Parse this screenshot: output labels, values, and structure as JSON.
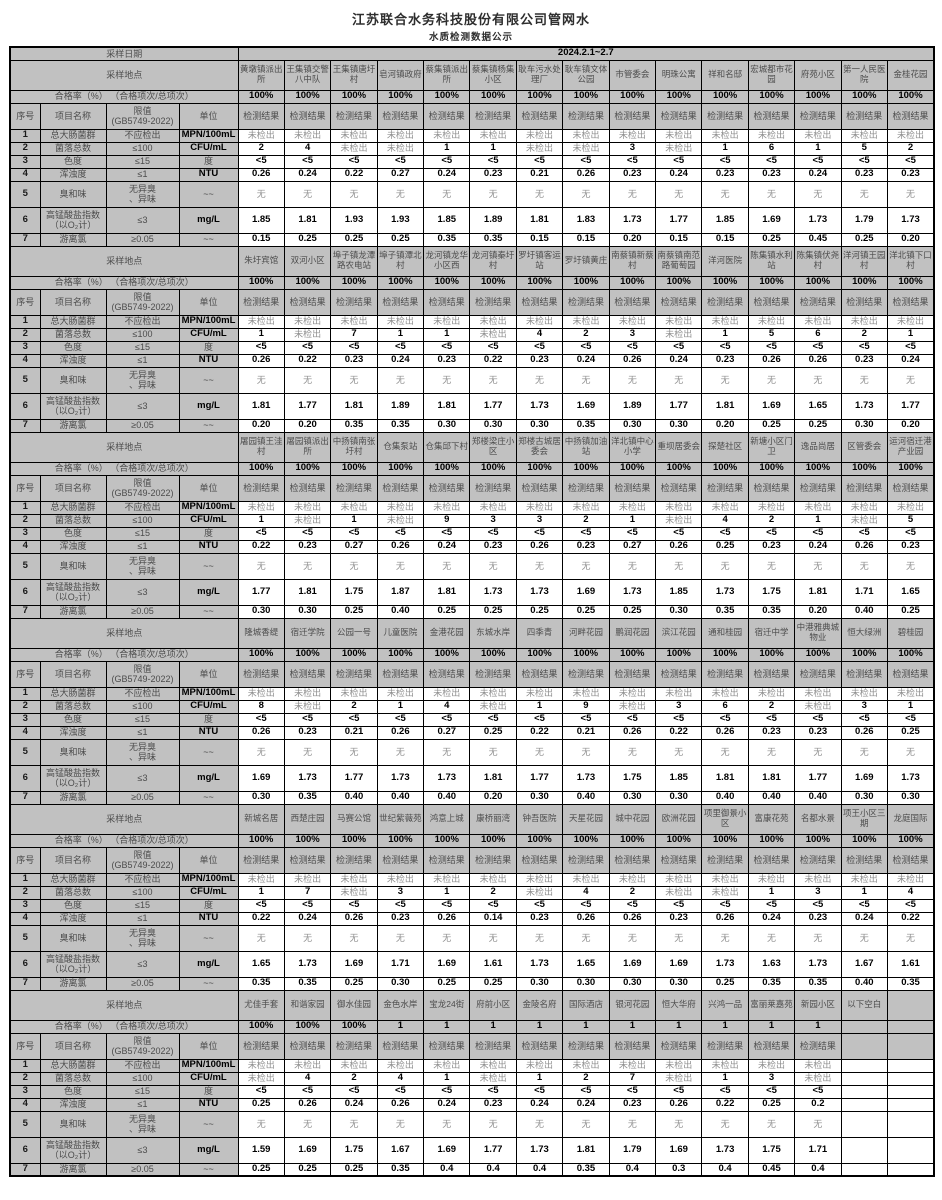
{
  "title": "江苏联合水务科技股份有限公司管网水",
  "subtitle": "水质检测数据公示",
  "header": {
    "sampling_date_label": "采样日期",
    "sampling_date_value": "2024.2.1~2.7",
    "sampling_location_label": "采样地点",
    "pass_rate_label": "合格率（%） （合格项次/总项次）",
    "col_seq": "序号",
    "col_item": "项目名称",
    "col_limit": "限值\n(GB5749-2022)",
    "col_unit": "单位",
    "result_label": "检测结果"
  },
  "items": [
    {
      "seq": "1",
      "name": "总大肠菌群",
      "limit": "不应检出",
      "unit": "MPN/100mL"
    },
    {
      "seq": "2",
      "name": "菌落总数",
      "limit": "≤100",
      "unit": "CFU/mL"
    },
    {
      "seq": "3",
      "name": "色度",
      "limit": "≤15",
      "unit": "度"
    },
    {
      "seq": "4",
      "name": "浑浊度",
      "limit": "≤1",
      "unit": "NTU"
    },
    {
      "seq": "5",
      "name": "臭和味",
      "limit": "无异臭\n、异味",
      "unit": "~~"
    },
    {
      "seq": "6",
      "name": "高锰酸盐指数\n（以O₂计）",
      "limit": "≤3",
      "unit": "mg/L"
    },
    {
      "seq": "7",
      "name": "游离氯",
      "limit": "≥0.05",
      "unit": "~~"
    }
  ],
  "sections": [
    {
      "locations": [
        "黄墩镇派出所",
        "王集镇交警八中队",
        "王集镇唐圩村",
        "皂河镇政府",
        "蔡集镇派出所",
        "蔡集镇杨集小区",
        "耿车污水处理厂",
        "耿车镇文体公园",
        "市管委会",
        "明珠公寓",
        "祥和名邸",
        "宏城都市花园",
        "府苑小区",
        "第一人民医院",
        "金桂花园"
      ],
      "pass_rates": [
        "100%",
        "100%",
        "100%",
        "100%",
        "100%",
        "100%",
        "100%",
        "100%",
        "100%",
        "100%",
        "100%",
        "100%",
        "100%",
        "100%",
        "100%"
      ],
      "results": [
        [
          "未检出",
          "未检出",
          "未检出",
          "未检出",
          "未检出",
          "未检出",
          "未检出",
          "未检出",
          "未检出",
          "未检出",
          "未检出",
          "未检出",
          "未检出",
          "未检出",
          "未检出"
        ],
        [
          "2",
          "4",
          "未检出",
          "未检出",
          "1",
          "1",
          "未检出",
          "未检出",
          "3",
          "未检出",
          "1",
          "6",
          "1",
          "5",
          "2"
        ],
        [
          "<5",
          "<5",
          "<5",
          "<5",
          "<5",
          "<5",
          "<5",
          "<5",
          "<5",
          "<5",
          "<5",
          "<5",
          "<5",
          "<5",
          "<5"
        ],
        [
          "0.26",
          "0.24",
          "0.22",
          "0.27",
          "0.24",
          "0.23",
          "0.21",
          "0.26",
          "0.23",
          "0.24",
          "0.23",
          "0.23",
          "0.24",
          "0.23",
          "0.23"
        ],
        [
          "无",
          "无",
          "无",
          "无",
          "无",
          "无",
          "无",
          "无",
          "无",
          "无",
          "无",
          "无",
          "无",
          "无",
          "无"
        ],
        [
          "1.85",
          "1.81",
          "1.93",
          "1.93",
          "1.85",
          "1.89",
          "1.81",
          "1.83",
          "1.73",
          "1.77",
          "1.85",
          "1.69",
          "1.73",
          "1.79",
          "1.73"
        ],
        [
          "0.15",
          "0.25",
          "0.25",
          "0.25",
          "0.35",
          "0.35",
          "0.15",
          "0.15",
          "0.20",
          "0.15",
          "0.15",
          "0.25",
          "0.45",
          "0.25",
          "0.20"
        ]
      ]
    },
    {
      "locations": [
        "朱圩宾馆",
        "双河小区",
        "埠子镇龙潭路农电站",
        "埠子镇潭北村",
        "龙河镇龙华小区西",
        "龙河镇秦圩村",
        "罗圩镇客运站",
        "罗圩镇黄庄",
        "南蔡镇新蔡村",
        "南蔡镇南范路葡萄园",
        "洋河医院",
        "陈集镇水利站",
        "陈集镇伏尧村",
        "洋河镇王园村",
        "洋北镇下口村"
      ],
      "pass_rates": [
        "100%",
        "100%",
        "100%",
        "100%",
        "100%",
        "100%",
        "100%",
        "100%",
        "100%",
        "100%",
        "100%",
        "100%",
        "100%",
        "100%",
        "100%"
      ],
      "results": [
        [
          "未检出",
          "未检出",
          "未检出",
          "未检出",
          "未检出",
          "未检出",
          "未检出",
          "未检出",
          "未检出",
          "未检出",
          "未检出",
          "未检出",
          "未检出",
          "未检出",
          "未检出"
        ],
        [
          "1",
          "未检出",
          "7",
          "1",
          "1",
          "未检出",
          "4",
          "2",
          "3",
          "未检出",
          "1",
          "5",
          "6",
          "2",
          "1"
        ],
        [
          "<5",
          "<5",
          "<5",
          "<5",
          "<5",
          "<5",
          "<5",
          "<5",
          "<5",
          "<5",
          "<5",
          "<5",
          "<5",
          "<5",
          "<5"
        ],
        [
          "0.26",
          "0.22",
          "0.23",
          "0.24",
          "0.23",
          "0.22",
          "0.23",
          "0.24",
          "0.26",
          "0.24",
          "0.23",
          "0.26",
          "0.26",
          "0.23",
          "0.24"
        ],
        [
          "无",
          "无",
          "无",
          "无",
          "无",
          "无",
          "无",
          "无",
          "无",
          "无",
          "无",
          "无",
          "无",
          "无",
          "无"
        ],
        [
          "1.81",
          "1.77",
          "1.81",
          "1.89",
          "1.81",
          "1.77",
          "1.73",
          "1.69",
          "1.89",
          "1.77",
          "1.81",
          "1.69",
          "1.65",
          "1.73",
          "1.77"
        ],
        [
          "0.20",
          "0.20",
          "0.35",
          "0.35",
          "0.30",
          "0.30",
          "0.30",
          "0.35",
          "0.30",
          "0.30",
          "0.20",
          "0.25",
          "0.25",
          "0.30",
          "0.20"
        ]
      ]
    },
    {
      "locations": [
        "屠园镇王洼村",
        "屠园镇派出所",
        "中扬镇南张圩村",
        "仓集泵站",
        "仓集邱下村",
        "郑楼梁庄小区",
        "郑楼古城居委会",
        "中扬镇加油站",
        "洋北镇中心小学",
        "重坝居委会",
        "探楚社区",
        "新塘小区门卫",
        "逸品尚居",
        "区管委会",
        "运河宿迁港产业园"
      ],
      "pass_rates": [
        "100%",
        "100%",
        "100%",
        "100%",
        "100%",
        "100%",
        "100%",
        "100%",
        "100%",
        "100%",
        "100%",
        "100%",
        "100%",
        "100%",
        "100%"
      ],
      "results": [
        [
          "未检出",
          "未检出",
          "未检出",
          "未检出",
          "未检出",
          "未检出",
          "未检出",
          "未检出",
          "未检出",
          "未检出",
          "未检出",
          "未检出",
          "未检出",
          "未检出",
          "未检出"
        ],
        [
          "1",
          "未检出",
          "1",
          "未检出",
          "9",
          "3",
          "3",
          "2",
          "1",
          "未检出",
          "4",
          "2",
          "1",
          "未检出",
          "5"
        ],
        [
          "<5",
          "<5",
          "<5",
          "<5",
          "<5",
          "<5",
          "<5",
          "<5",
          "<5",
          "<5",
          "<5",
          "<5",
          "<5",
          "<5",
          "<5"
        ],
        [
          "0.22",
          "0.23",
          "0.27",
          "0.26",
          "0.24",
          "0.23",
          "0.26",
          "0.23",
          "0.27",
          "0.26",
          "0.25",
          "0.23",
          "0.24",
          "0.26",
          "0.23"
        ],
        [
          "无",
          "无",
          "无",
          "无",
          "无",
          "无",
          "无",
          "无",
          "无",
          "无",
          "无",
          "无",
          "无",
          "无",
          "无"
        ],
        [
          "1.77",
          "1.81",
          "1.75",
          "1.87",
          "1.81",
          "1.73",
          "1.73",
          "1.69",
          "1.73",
          "1.85",
          "1.73",
          "1.75",
          "1.81",
          "1.71",
          "1.65"
        ],
        [
          "0.30",
          "0.30",
          "0.25",
          "0.40",
          "0.25",
          "0.25",
          "0.25",
          "0.25",
          "0.25",
          "0.30",
          "0.35",
          "0.35",
          "0.20",
          "0.40",
          "0.25"
        ]
      ]
    },
    {
      "locations": [
        "隆城香缇",
        "宿迁学院",
        "公园一号",
        "儿童医院",
        "金港花园",
        "东城水岸",
        "四季青",
        "河畔花园",
        "鹏润花园",
        "滨江花园",
        "通和桂园",
        "宿迁中学",
        "中港雅典城物业",
        "恒大绿洲",
        "碧桂园"
      ],
      "pass_rates": [
        "100%",
        "100%",
        "100%",
        "100%",
        "100%",
        "100%",
        "100%",
        "100%",
        "100%",
        "100%",
        "100%",
        "100%",
        "100%",
        "100%",
        "100%"
      ],
      "results": [
        [
          "未检出",
          "未检出",
          "未检出",
          "未检出",
          "未检出",
          "未检出",
          "未检出",
          "未检出",
          "未检出",
          "未检出",
          "未检出",
          "未检出",
          "未检出",
          "未检出",
          "未检出"
        ],
        [
          "8",
          "未检出",
          "2",
          "1",
          "4",
          "未检出",
          "1",
          "9",
          "未检出",
          "3",
          "6",
          "2",
          "未检出",
          "3",
          "1"
        ],
        [
          "<5",
          "<5",
          "<5",
          "<5",
          "<5",
          "<5",
          "<5",
          "<5",
          "<5",
          "<5",
          "<5",
          "<5",
          "<5",
          "<5",
          "<5"
        ],
        [
          "0.26",
          "0.23",
          "0.21",
          "0.26",
          "0.27",
          "0.25",
          "0.22",
          "0.21",
          "0.26",
          "0.22",
          "0.26",
          "0.23",
          "0.23",
          "0.26",
          "0.25"
        ],
        [
          "无",
          "无",
          "无",
          "无",
          "无",
          "无",
          "无",
          "无",
          "无",
          "无",
          "无",
          "无",
          "无",
          "无",
          "无"
        ],
        [
          "1.69",
          "1.73",
          "1.77",
          "1.73",
          "1.73",
          "1.81",
          "1.77",
          "1.73",
          "1.75",
          "1.85",
          "1.81",
          "1.81",
          "1.77",
          "1.69",
          "1.73"
        ],
        [
          "0.30",
          "0.35",
          "0.40",
          "0.40",
          "0.40",
          "0.20",
          "0.30",
          "0.40",
          "0.30",
          "0.30",
          "0.40",
          "0.40",
          "0.40",
          "0.30",
          "0.30"
        ]
      ]
    },
    {
      "locations": [
        "新城名居",
        "西楚庄园",
        "马赛公馆",
        "世纪紫薇苑",
        "鸿意上城",
        "康桥丽湾",
        "钟吾医院",
        "天星花园",
        "城中花园",
        "欧洲花园",
        "项里御景小区",
        "富康花苑",
        "名都水景",
        "项王小区三期",
        "龙庭国际"
      ],
      "pass_rates": [
        "100%",
        "100%",
        "100%",
        "100%",
        "100%",
        "100%",
        "100%",
        "100%",
        "100%",
        "100%",
        "100%",
        "100%",
        "100%",
        "100%",
        "100%"
      ],
      "results": [
        [
          "未检出",
          "未检出",
          "未检出",
          "未检出",
          "未检出",
          "未检出",
          "未检出",
          "未检出",
          "未检出",
          "未检出",
          "未检出",
          "未检出",
          "未检出",
          "未检出",
          "未检出"
        ],
        [
          "1",
          "7",
          "未检出",
          "3",
          "1",
          "2",
          "未检出",
          "4",
          "2",
          "未检出",
          "未检出",
          "1",
          "3",
          "1",
          "4"
        ],
        [
          "<5",
          "<5",
          "<5",
          "<5",
          "<5",
          "<5",
          "<5",
          "<5",
          "<5",
          "<5",
          "<5",
          "<5",
          "<5",
          "<5",
          "<5"
        ],
        [
          "0.22",
          "0.24",
          "0.26",
          "0.23",
          "0.26",
          "0.14",
          "0.23",
          "0.26",
          "0.26",
          "0.23",
          "0.26",
          "0.24",
          "0.23",
          "0.24",
          "0.22"
        ],
        [
          "无",
          "无",
          "无",
          "无",
          "无",
          "无",
          "无",
          "无",
          "无",
          "无",
          "无",
          "无",
          "无",
          "无",
          "无"
        ],
        [
          "1.65",
          "1.73",
          "1.69",
          "1.71",
          "1.69",
          "1.61",
          "1.73",
          "1.65",
          "1.69",
          "1.69",
          "1.73",
          "1.63",
          "1.73",
          "1.67",
          "1.61"
        ],
        [
          "0.35",
          "0.35",
          "0.25",
          "0.30",
          "0.25",
          "0.25",
          "0.30",
          "0.30",
          "0.30",
          "0.30",
          "0.25",
          "0.35",
          "0.35",
          "0.40",
          "0.35"
        ]
      ]
    },
    {
      "locations": [
        "尤佳手套",
        "和谐家园",
        "御水佳园",
        "金色水岸",
        "宝龙24街",
        "府前小区",
        "金陵名府",
        "国际酒店",
        "银河花园",
        "恒大华府",
        "兴鸿一品",
        "富丽莱嘉苑",
        "新园小区",
        "以下空白",
        ""
      ],
      "pass_rates": [
        "100%",
        "100%",
        "100%",
        "1",
        "1",
        "1",
        "1",
        "1",
        "1",
        "1",
        "1",
        "1",
        "1",
        "",
        ""
      ],
      "results": [
        [
          "未检出",
          "未检出",
          "未检出",
          "未检出",
          "未检出",
          "未检出",
          "未检出",
          "未检出",
          "未检出",
          "未检出",
          "未检出",
          "未检出",
          "未检出",
          "",
          ""
        ],
        [
          "未检出",
          "4",
          "2",
          "4",
          "1",
          "未检出",
          "1",
          "2",
          "7",
          "未检出",
          "1",
          "3",
          "未检出",
          "",
          ""
        ],
        [
          "<5",
          "<5",
          "<5",
          "<5",
          "<5",
          "<5",
          "<5",
          "<5",
          "<5",
          "<5",
          "<5",
          "<5",
          "<5",
          "",
          ""
        ],
        [
          "0.25",
          "0.26",
          "0.24",
          "0.26",
          "0.24",
          "0.23",
          "0.24",
          "0.24",
          "0.23",
          "0.26",
          "0.22",
          "0.25",
          "0.2",
          "",
          ""
        ],
        [
          "无",
          "无",
          "无",
          "无",
          "无",
          "无",
          "无",
          "无",
          "无",
          "无",
          "无",
          "无",
          "无",
          "",
          ""
        ],
        [
          "1.59",
          "1.69",
          "1.75",
          "1.67",
          "1.69",
          "1.77",
          "1.73",
          "1.81",
          "1.79",
          "1.69",
          "1.73",
          "1.75",
          "1.71",
          "",
          ""
        ],
        [
          "0.25",
          "0.25",
          "0.25",
          "0.35",
          "0.4",
          "0.4",
          "0.4",
          "0.35",
          "0.4",
          "0.3",
          "0.4",
          "0.45",
          "0.4",
          "",
          ""
        ]
      ]
    }
  ]
}
